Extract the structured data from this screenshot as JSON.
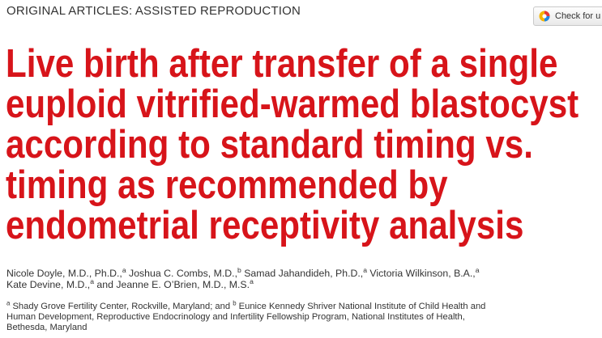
{
  "header": {
    "section": "ORIGINAL ARTICLES: ASSISTED REPRODUCTION",
    "crossmark_label": "Check for u"
  },
  "article": {
    "title_lines": [
      "Live birth after transfer of a single",
      "euploid vitrified-warmed blastocyst",
      "according to standard timing vs.",
      "timing as recommended by",
      "endometrial receptivity analysis"
    ],
    "authors_line1": [
      {
        "name": "Nicole Doyle, M.D., Ph.D.,",
        "sup": "a"
      },
      {
        "name": " Joshua C. Combs, M.D.,",
        "sup": "b"
      },
      {
        "name": " Samad Jahandideh, Ph.D.,",
        "sup": "a"
      },
      {
        "name": " Victoria Wilkinson, B.A.,",
        "sup": "a"
      }
    ],
    "authors_line2": [
      {
        "name": "Kate Devine, M.D.,",
        "sup": "a"
      },
      {
        "name": " and Jeanne E. O’Brien, M.D., M.S.",
        "sup": "a"
      }
    ],
    "affiliation_lines": [
      {
        "sup": "a",
        "text": " Shady Grove Fertility Center, Rockville, Maryland; and "
      },
      {
        "text": "Human Development, Reproductive Endocrinology and Infertility Fellowship Program, National Institutes of Health,"
      },
      {
        "text": "Bethesda, Maryland"
      }
    ],
    "affiliation_b": {
      "sup": "b",
      "text": " Eunice Kennedy Shriver National Institute of Child Health and"
    }
  },
  "colors": {
    "title": "#d7141a",
    "text": "#333333"
  }
}
